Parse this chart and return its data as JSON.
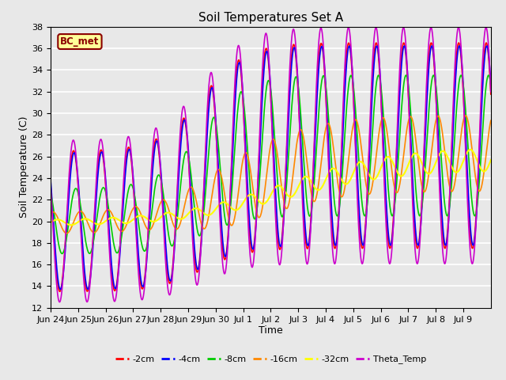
{
  "title": "Soil Temperatures Set A",
  "xlabel": "Time",
  "ylabel": "Soil Temperature (C)",
  "ylim": [
    12,
    38
  ],
  "xlim": [
    0,
    16
  ],
  "annotation": "BC_met",
  "annotation_color": "#8B0000",
  "annotation_bg": "#FFFF99",
  "series_colors": {
    "-2cm": "#FF0000",
    "-4cm": "#0000FF",
    "-8cm": "#00CC00",
    "-16cm": "#FF8800",
    "-32cm": "#FFFF00",
    "Theta_Temp": "#CC00CC"
  },
  "background_color": "#E8E8E8",
  "grid_color": "#FFFFFF",
  "tick_labels": [
    "Jun 24",
    "Jun 25",
    "Jun 26",
    "Jun 27",
    "Jun 28",
    "Jun 29",
    "Jun 30",
    "Jul 1",
    "Jul 2",
    "Jul 3",
    "Jul 4",
    "Jul 5",
    "Jul 6",
    "Jul 7",
    "Jul 8",
    "Jul 9"
  ],
  "yticks": [
    12,
    14,
    16,
    18,
    20,
    22,
    24,
    26,
    28,
    30,
    32,
    34,
    36,
    38
  ]
}
